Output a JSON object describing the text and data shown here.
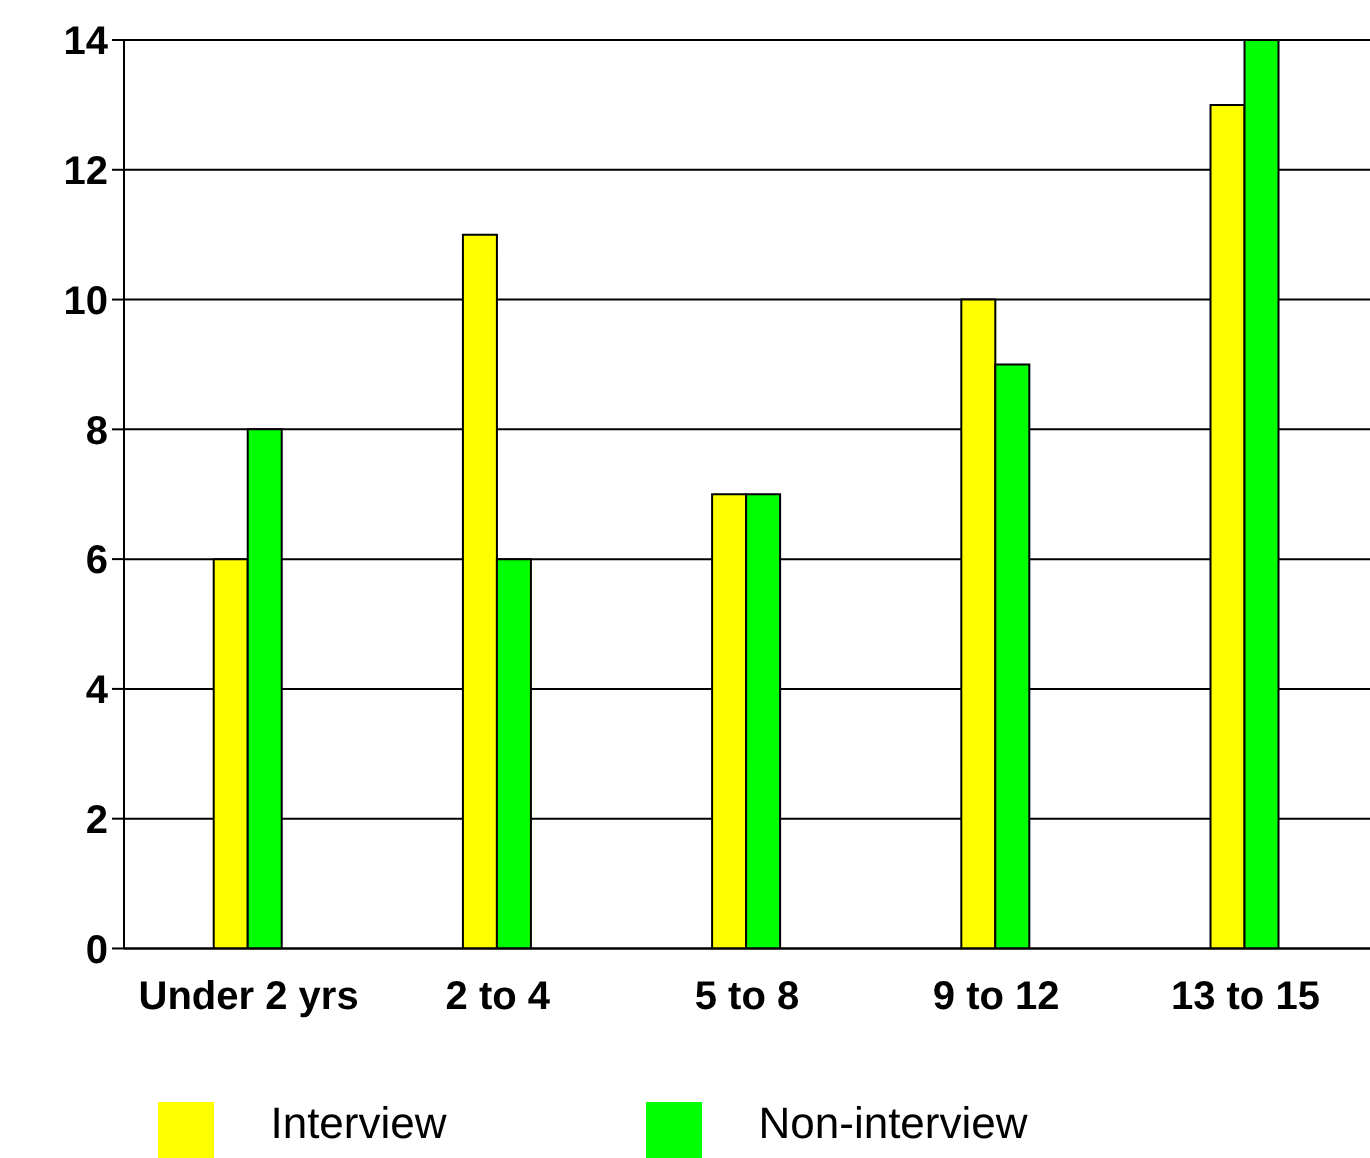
{
  "chart_data": {
    "type": "bar",
    "categories": [
      "Under 2 yrs",
      "2 to 4",
      "5 to 8",
      "9 to 12",
      "13 to 15"
    ],
    "series": [
      {
        "name": "Interview",
        "color": "#ffff00",
        "values": [
          6,
          11,
          7,
          10,
          13
        ]
      },
      {
        "name": "Non-interview",
        "color": "#00ff00",
        "values": [
          8,
          6,
          7,
          9,
          14
        ]
      }
    ],
    "ylim": [
      0,
      14
    ],
    "yticks": [
      0,
      2,
      4,
      6,
      8,
      10,
      12,
      14
    ],
    "grid": "y",
    "legend": "bottom"
  }
}
